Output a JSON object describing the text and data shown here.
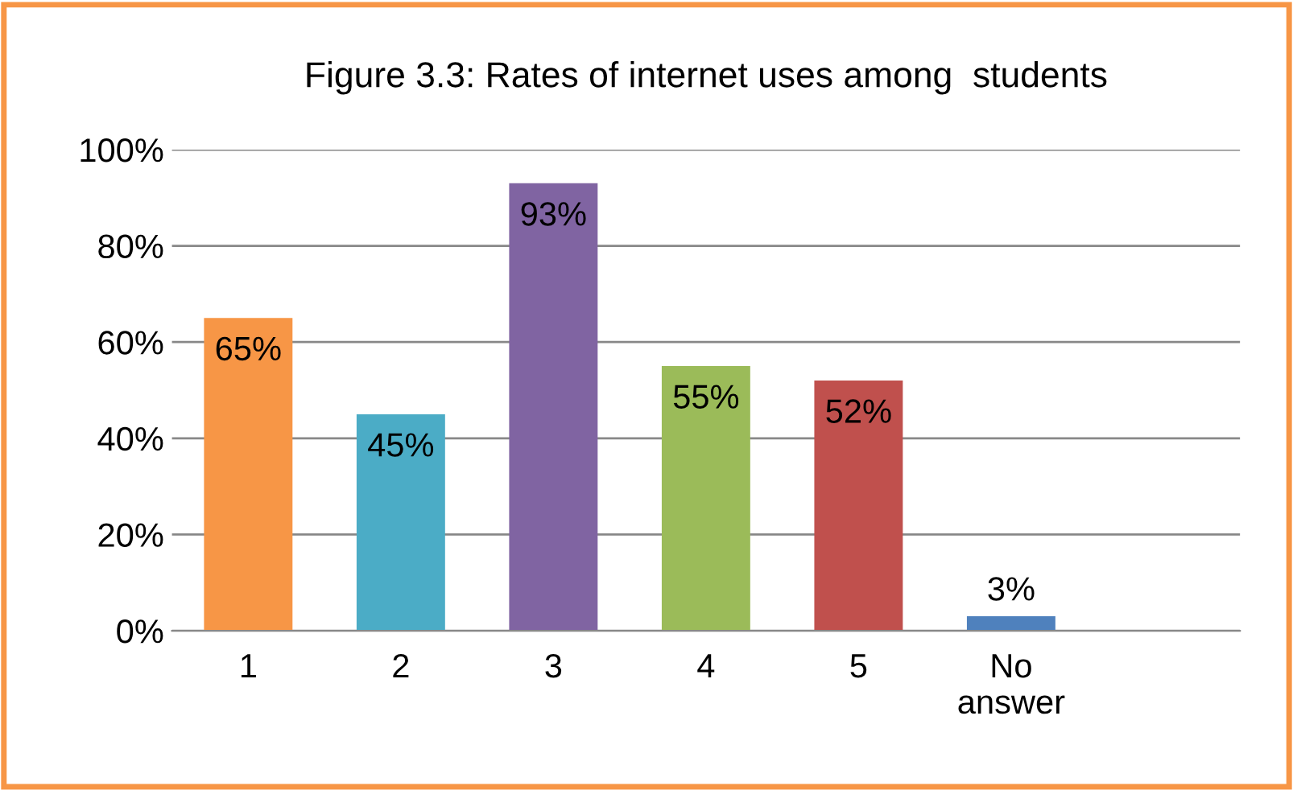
{
  "chart_data": {
    "type": "bar",
    "title": "Figure 3.3: Rates of internet uses among  students",
    "categories": [
      "1",
      "2",
      "3",
      "4",
      "5",
      "No answer",
      null
    ],
    "values": [
      65,
      45,
      93,
      55,
      52,
      3,
      null
    ],
    "colors": [
      "#f79646",
      "#4bacc6",
      "#8064a2",
      "#9bbb59",
      "#c0504d",
      "#4f81bd",
      "#4f81bd"
    ],
    "value_labels": [
      "65%",
      "45%",
      "93%",
      "55%",
      "52%",
      "3%",
      null
    ],
    "ylim": [
      0,
      100
    ],
    "yticks": [
      {
        "value": 0,
        "label": "0%"
      },
      {
        "value": 20,
        "label": "20%"
      },
      {
        "value": 40,
        "label": "40%"
      },
      {
        "value": 60,
        "label": "60%"
      },
      {
        "value": 80,
        "label": "80%"
      },
      {
        "value": 100,
        "label": "100%"
      }
    ],
    "grid": "y",
    "legend": false
  }
}
